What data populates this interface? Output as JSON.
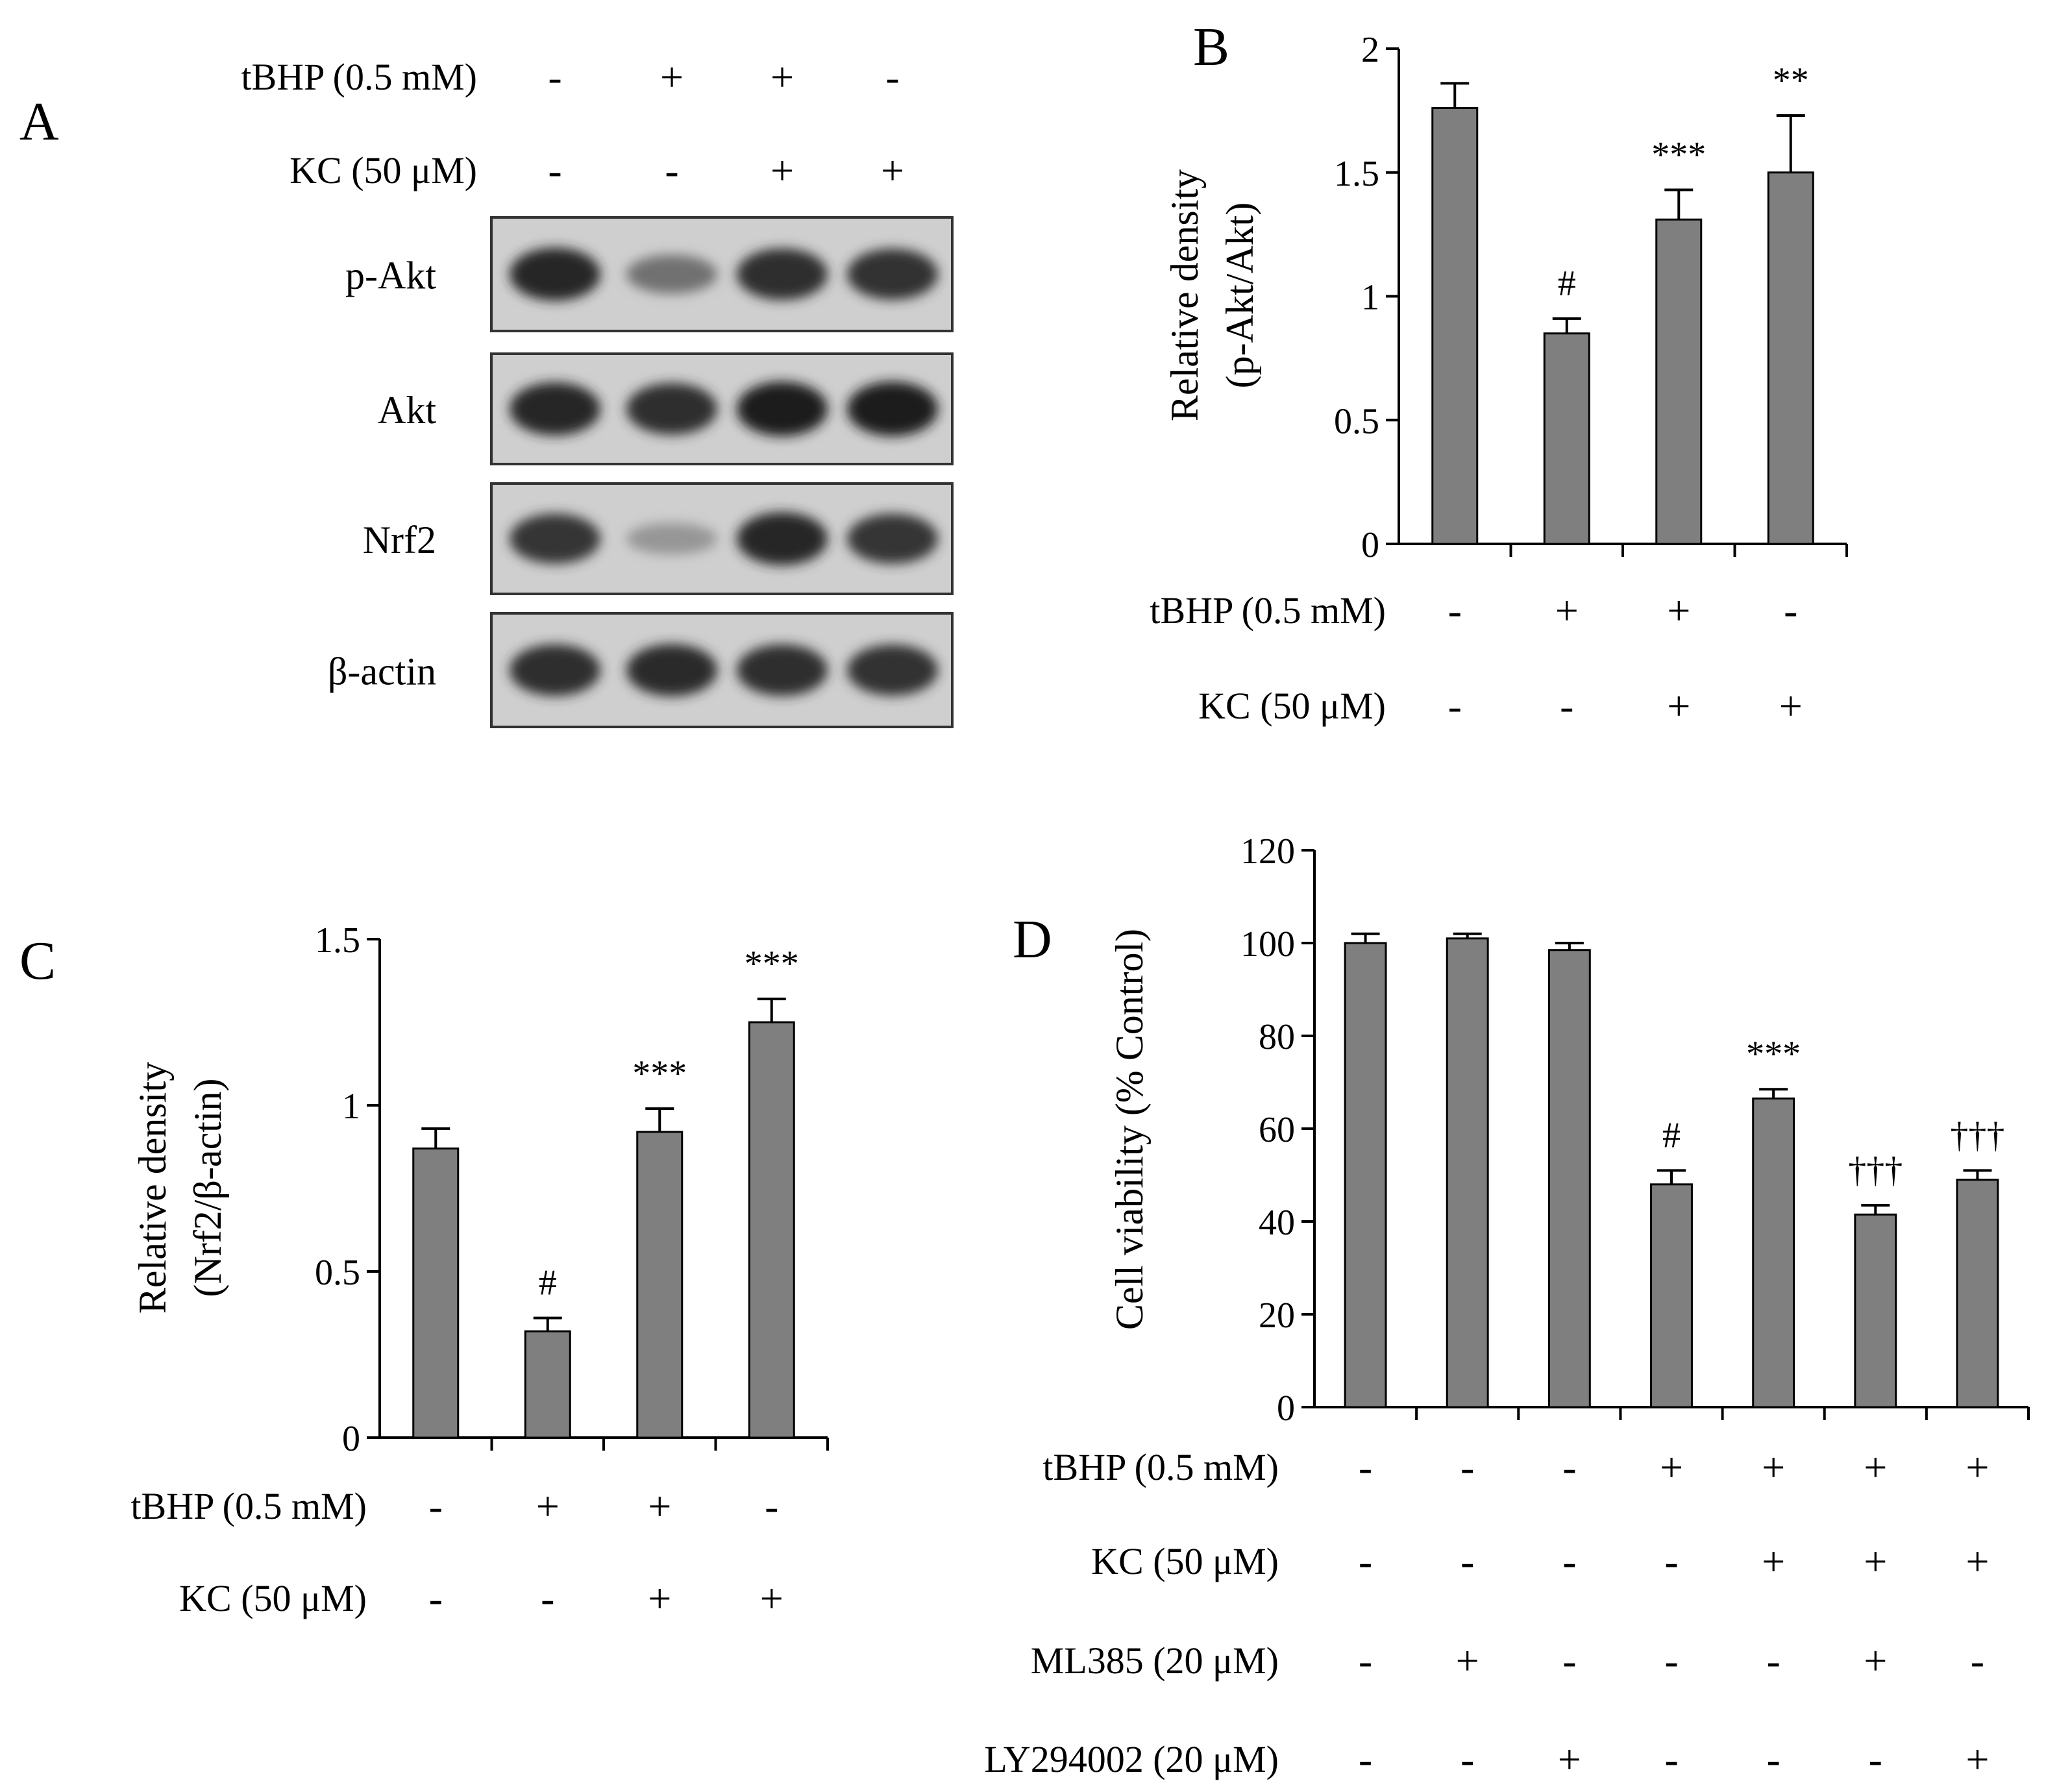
{
  "panel_a": {
    "label": "A",
    "conditions": [
      {
        "label": "tBHP (0.5 mM)",
        "signs": [
          "-",
          "+",
          "+",
          "-"
        ]
      },
      {
        "label": "KC (50 μM)",
        "signs": [
          "-",
          "-",
          "+",
          "+"
        ]
      }
    ],
    "blots": [
      {
        "label": "p-Akt",
        "intensities": [
          0.95,
          0.45,
          0.9,
          0.88
        ]
      },
      {
        "label": "Akt",
        "intensities": [
          0.95,
          0.9,
          1.0,
          1.0
        ]
      },
      {
        "label": "Nrf2",
        "intensities": [
          0.85,
          0.2,
          0.95,
          0.85
        ]
      },
      {
        "label": "β-actin",
        "intensities": [
          0.9,
          0.92,
          0.9,
          0.88
        ]
      }
    ]
  },
  "chart_data": [
    {
      "panel": "B",
      "type": "bar",
      "ylabel": [
        "Relative density",
        "(p-Akt/Akt)"
      ],
      "ylim": [
        0,
        2
      ],
      "yticks": [
        0,
        0.5,
        1,
        1.5,
        2
      ],
      "ytick_labels": [
        "0",
        "0.5",
        "1",
        "1.5",
        "2"
      ],
      "values": [
        1.76,
        0.85,
        1.31,
        1.5
      ],
      "errors": [
        0.1,
        0.06,
        0.12,
        0.23
      ],
      "annotations": [
        "",
        "#",
        "***",
        "**"
      ],
      "conditions": [
        {
          "label": "tBHP (0.5 mM)",
          "signs": [
            "-",
            "+",
            "+",
            "-"
          ]
        },
        {
          "label": "KC (50 μM)",
          "signs": [
            "-",
            "-",
            "+",
            "+"
          ]
        }
      ],
      "bar_color": "#7f7f7f"
    },
    {
      "panel": "C",
      "type": "bar",
      "ylabel": [
        "Relative density",
        "(Nrf2/β-actin)"
      ],
      "ylim": [
        0,
        1.5
      ],
      "yticks": [
        0,
        0.5,
        1,
        1.5
      ],
      "ytick_labels": [
        "0",
        "0.5",
        "1",
        "1.5"
      ],
      "values": [
        0.87,
        0.32,
        0.92,
        1.25
      ],
      "errors": [
        0.06,
        0.04,
        0.07,
        0.07
      ],
      "annotations": [
        "",
        "#",
        "***",
        "***"
      ],
      "conditions": [
        {
          "label": "tBHP (0.5 mM)",
          "signs": [
            "-",
            "+",
            "+",
            "-"
          ]
        },
        {
          "label": "KC (50 μM)",
          "signs": [
            "-",
            "-",
            "+",
            "+"
          ]
        }
      ],
      "bar_color": "#7f7f7f"
    },
    {
      "panel": "D",
      "type": "bar",
      "ylabel": [
        "Cell viability (% Control)"
      ],
      "ylim": [
        0,
        120
      ],
      "yticks": [
        0,
        20,
        40,
        60,
        80,
        100,
        120
      ],
      "ytick_labels": [
        "0",
        "20",
        "40",
        "60",
        "80",
        "100",
        "120"
      ],
      "values": [
        100,
        101,
        98.5,
        48,
        66.5,
        41.5,
        49
      ],
      "errors": [
        2,
        1,
        1.5,
        3,
        2,
        2,
        2
      ],
      "annotations": [
        "",
        "",
        "",
        "#",
        "***",
        "†††",
        "†††"
      ],
      "conditions": [
        {
          "label": "tBHP (0.5 mM)",
          "signs": [
            "-",
            "-",
            "-",
            "+",
            "+",
            "+",
            "+"
          ]
        },
        {
          "label": "KC (50 μM)",
          "signs": [
            "-",
            "-",
            "-",
            "-",
            "+",
            "+",
            "+"
          ]
        },
        {
          "label": "ML385 (20 μM)",
          "signs": [
            "-",
            "+",
            "-",
            "-",
            "-",
            "+",
            "-"
          ]
        },
        {
          "label": "LY294002 (20 μM)",
          "signs": [
            "-",
            "-",
            "+",
            "-",
            "-",
            "-",
            "+"
          ]
        }
      ],
      "bar_color": "#7f7f7f"
    }
  ]
}
